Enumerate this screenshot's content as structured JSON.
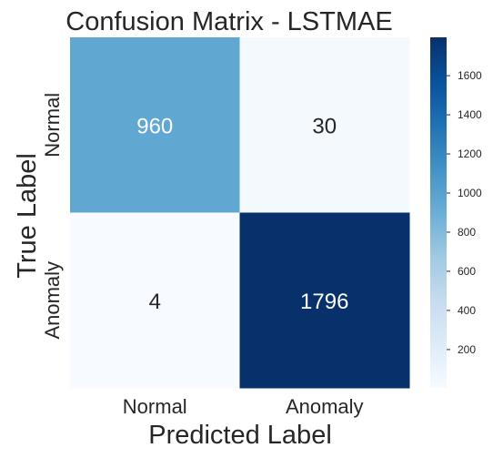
{
  "chart_data": {
    "type": "heatmap",
    "title": "Confusion Matrix - LSTMAE",
    "xlabel": "Predicted Label",
    "ylabel": "True Label",
    "x_categories": [
      "Normal",
      "Anomaly"
    ],
    "y_categories": [
      "Normal",
      "Anomaly"
    ],
    "values": [
      [
        960,
        30
      ],
      [
        4,
        1796
      ]
    ],
    "colormap": "Blues",
    "colorbar": {
      "range": [
        4,
        1796
      ],
      "ticks": [
        200,
        400,
        600,
        800,
        1000,
        1200,
        1400,
        1600
      ]
    },
    "text_colors": {
      "light": "#ffffff",
      "dark": "#262626"
    }
  }
}
